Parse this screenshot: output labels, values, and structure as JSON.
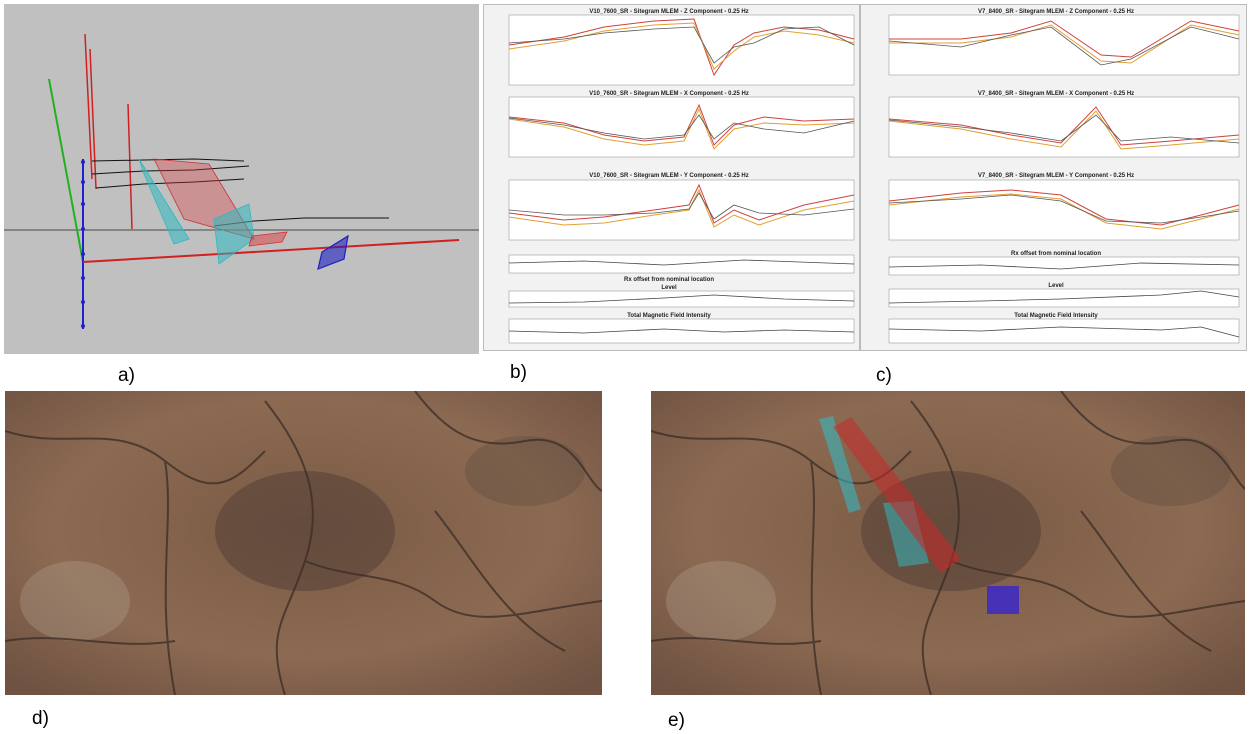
{
  "panel_labels": {
    "a": "a)",
    "b": "b)",
    "c": "c)",
    "d": "d)",
    "e": "e)"
  },
  "panel_b": {
    "titles": [
      "V10_7600_SR - Sitegram MLEM - Z Component - 0.25 Hz",
      "V10_7600_SR - Sitegram MLEM - X Component - 0.25 Hz",
      "V10_7600_SR - Sitegram MLEM - Y Component - 0.25 Hz",
      "Rx offset from nominal location",
      "Level",
      "Total Magnetic Field Intensity"
    ]
  },
  "panel_c": {
    "titles": [
      "V7_8400_SR - Sitegram MLEM - Z Component - 0.25 Hz",
      "V7_8400_SR - Sitegram MLEM - X Component - 0.25 Hz",
      "V7_8400_SR - Sitegram MLEM - Y Component - 0.25 Hz",
      "Rx offset from nominal location",
      "Level",
      "Total Magnetic Field Intensity"
    ]
  },
  "colors": {
    "panel_a_bg": "#c0c0c0",
    "plate_red": "#d03030",
    "plate_cyan": "#30b8c0",
    "plate_blue": "#2020c0",
    "terrain": "#8a6548"
  }
}
